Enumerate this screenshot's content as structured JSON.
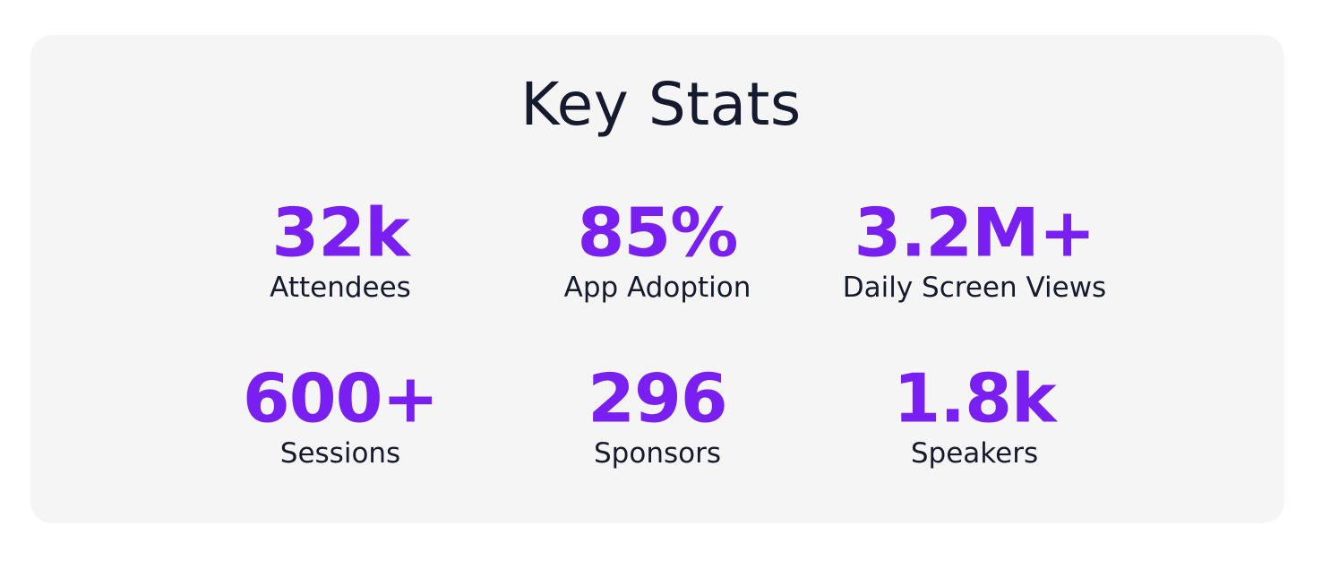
{
  "title": "Key Stats",
  "stats": [
    {
      "value": "32k",
      "label": "Attendees"
    },
    {
      "value": "85%",
      "label": "App Adoption"
    },
    {
      "value": "3.2M+",
      "label": "Daily Screen Views"
    },
    {
      "value": "600+",
      "label": "Sessions"
    },
    {
      "value": "296",
      "label": "Sponsors"
    },
    {
      "value": "1.8k",
      "label": "Speakers"
    }
  ],
  "colors": {
    "card_background": "#f5f5f5",
    "value": "#7a1ff2",
    "text": "#161a2e"
  }
}
